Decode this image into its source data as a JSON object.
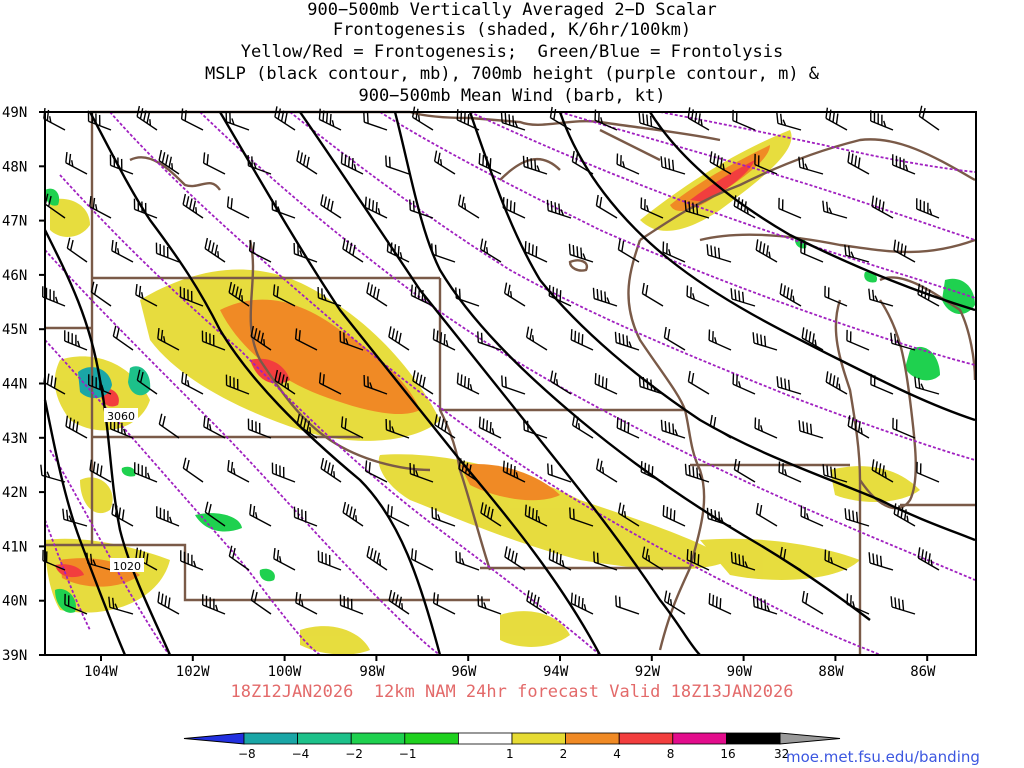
{
  "title": {
    "line1": "900−500mb Vertically Averaged 2−D Scalar",
    "line2": "Frontogenesis (shaded, K/6hr/100km)",
    "line3": "Yellow/Red = Frontogenesis;  Green/Blue = Frontolysis",
    "line4": "MSLP (black contour, mb), 700mb height (purple contour, m) &",
    "line5": "900−500mb Mean Wind (barb, kt)"
  },
  "lat_labels": [
    "49N",
    "48N",
    "47N",
    "46N",
    "45N",
    "44N",
    "43N",
    "42N",
    "41N",
    "40N",
    "39N"
  ],
  "lon_labels": [
    "104W",
    "102W",
    "100W",
    "98W",
    "96W",
    "94W",
    "92W",
    "90W",
    "88W",
    "86W"
  ],
  "contour_labels": {
    "height": "3060",
    "pressure": "1020"
  },
  "valid_text": "18Z12JAN2026  12km NAM 24hr forecast Valid 18Z13JAN2026",
  "source_url": "moe.met.fsu.edu/banding",
  "colorbar": {
    "labels": [
      "−8",
      "−4",
      "−2",
      "−1",
      "1",
      "2",
      "4",
      "8",
      "16",
      "32"
    ],
    "colors": [
      "#2230e0",
      "#1aa6a6",
      "#1dc18a",
      "#1fd14f",
      "#1fd11f",
      "#ffffff",
      "#e6db34",
      "#f08a25",
      "#f23e3e",
      "#e30d8c",
      "#000000",
      "#9a9a9a"
    ]
  },
  "colors": {
    "pressure_contour": "#000000",
    "height_contour": "#a020c0",
    "borders": "#7a5a48",
    "frontogenesis_weak": "#e6db34",
    "frontogenesis_mod": "#f08a25",
    "frontogenesis_strong": "#f23e3e",
    "frontolysis": "#1fd14f"
  },
  "icons": [
    "wind-barb-icon"
  ]
}
